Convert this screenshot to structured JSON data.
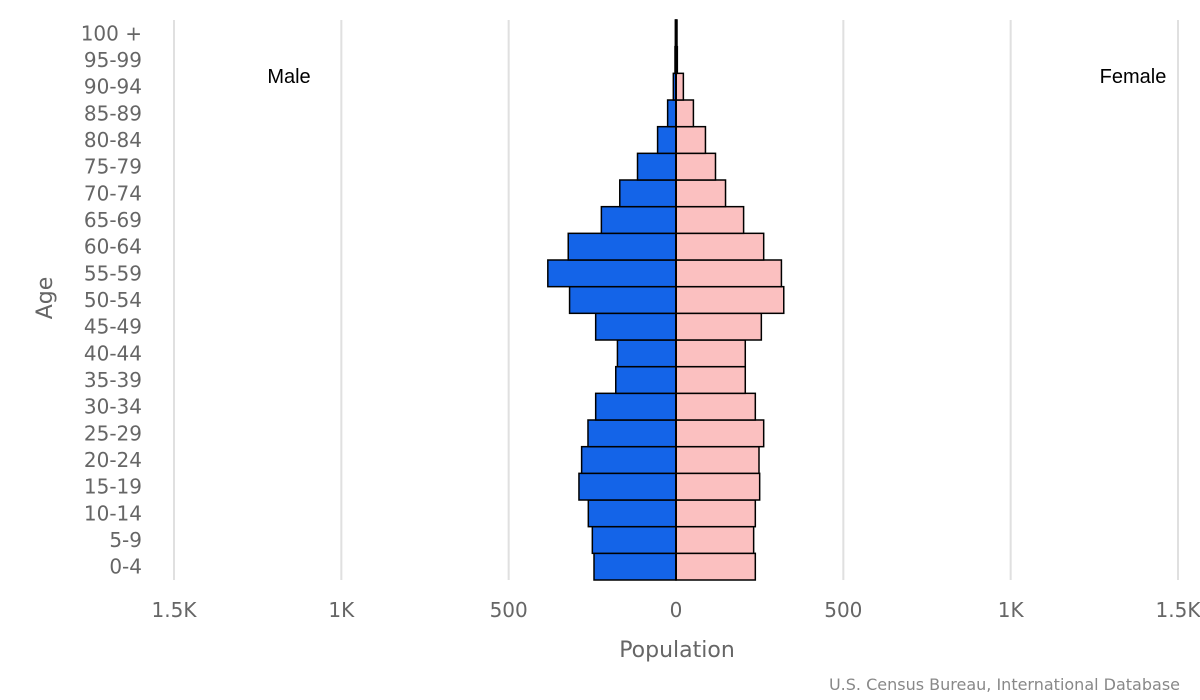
{
  "chart_data": {
    "type": "bar",
    "orientation": "horizontal-population-pyramid",
    "ylabel": "Age",
    "xlabel": "Population",
    "categories": [
      "0-4",
      "5-9",
      "10-14",
      "15-19",
      "20-24",
      "25-29",
      "30-34",
      "35-39",
      "40-44",
      "45-49",
      "50-54",
      "55-59",
      "60-64",
      "65-69",
      "70-74",
      "75-79",
      "80-84",
      "85-89",
      "90-94",
      "95-99",
      "100 +"
    ],
    "series": [
      {
        "name": "Male",
        "values": [
          245,
          250,
          262,
          290,
          282,
          263,
          240,
          180,
          175,
          240,
          318,
          383,
          322,
          223,
          168,
          115,
          55,
          25,
          8,
          3,
          2
        ]
      },
      {
        "name": "Female",
        "values": [
          237,
          232,
          237,
          250,
          248,
          262,
          237,
          207,
          207,
          255,
          322,
          315,
          262,
          202,
          148,
          118,
          88,
          52,
          22,
          4,
          3
        ]
      }
    ],
    "x_ticks": [
      "1.5K",
      "1K",
      "500",
      "0",
      "500",
      "1K",
      "1.5K"
    ],
    "xlim": [
      -1500,
      1500
    ],
    "grid": true,
    "colors": {
      "male": "#1464e8",
      "female": "#fbc0c0",
      "outline": "#000000",
      "grid": "#e0e0e0"
    },
    "side_labels": {
      "male": "Male",
      "female": "Female"
    },
    "credit": "U.S. Census Bureau, International Database"
  }
}
